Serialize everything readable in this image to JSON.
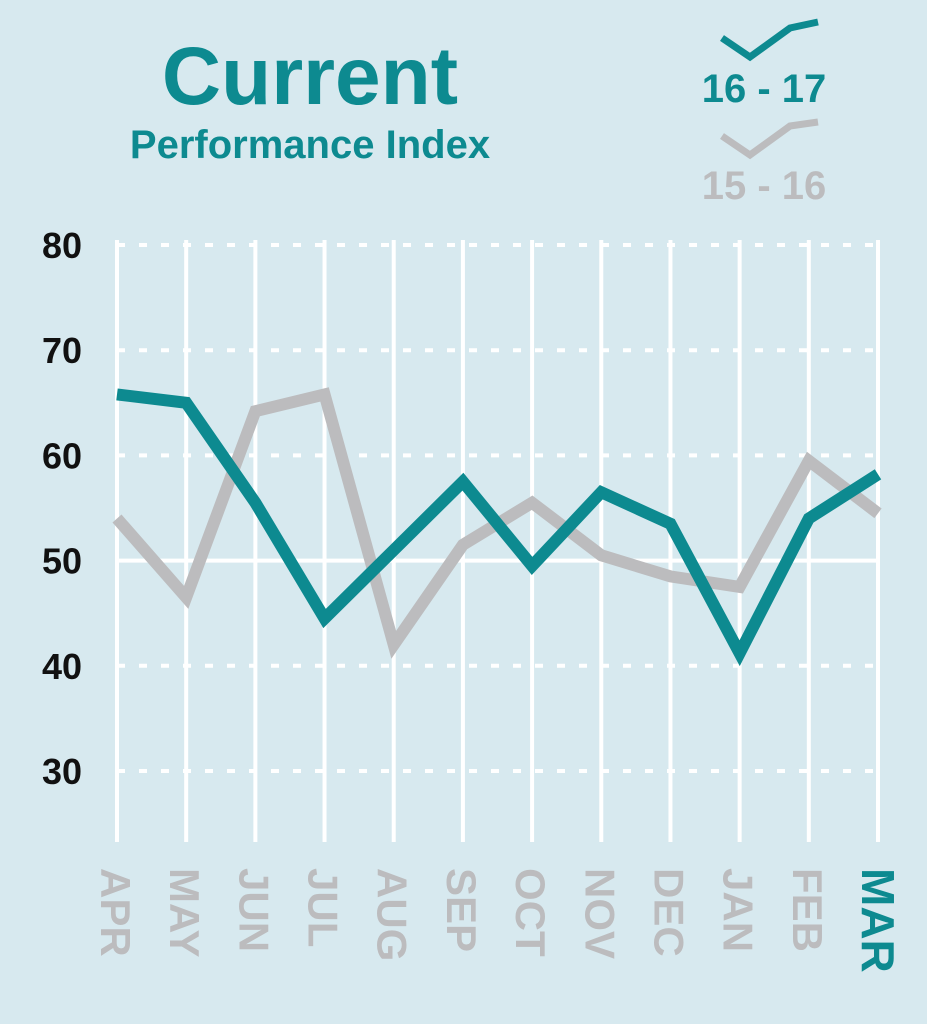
{
  "colors": {
    "background": "#d7e9ef",
    "series_current": "#0d8a90",
    "series_previous": "#bcbcbe",
    "axis_labels": "#111111",
    "grid": "#ffffff"
  },
  "chart_data": {
    "type": "line",
    "title": "Current",
    "subtitle": "Performance Index",
    "categories": [
      "APR",
      "MAY",
      "JUN",
      "JUL",
      "AUG",
      "SEP",
      "OCT",
      "NOV",
      "DEC",
      "JAN",
      "FEB",
      "MAR"
    ],
    "highlight_category": "MAR",
    "ylim": [
      25,
      80
    ],
    "yticks": [
      80,
      70,
      60,
      50,
      40,
      30
    ],
    "grid": true,
    "legend_position": "top-right",
    "series": [
      {
        "name": "16 - 17",
        "color": "#0d8a90",
        "values": [
          65.8,
          65.0,
          55.5,
          44.5,
          51.0,
          57.5,
          49.5,
          56.5,
          53.5,
          41.2,
          54.0,
          58.2
        ]
      },
      {
        "name": "15 - 16",
        "color": "#bcbcbe",
        "values": [
          54.0,
          46.5,
          64.2,
          65.8,
          42.0,
          51.5,
          55.5,
          50.5,
          48.5,
          47.5,
          59.5,
          54.5
        ]
      }
    ]
  }
}
